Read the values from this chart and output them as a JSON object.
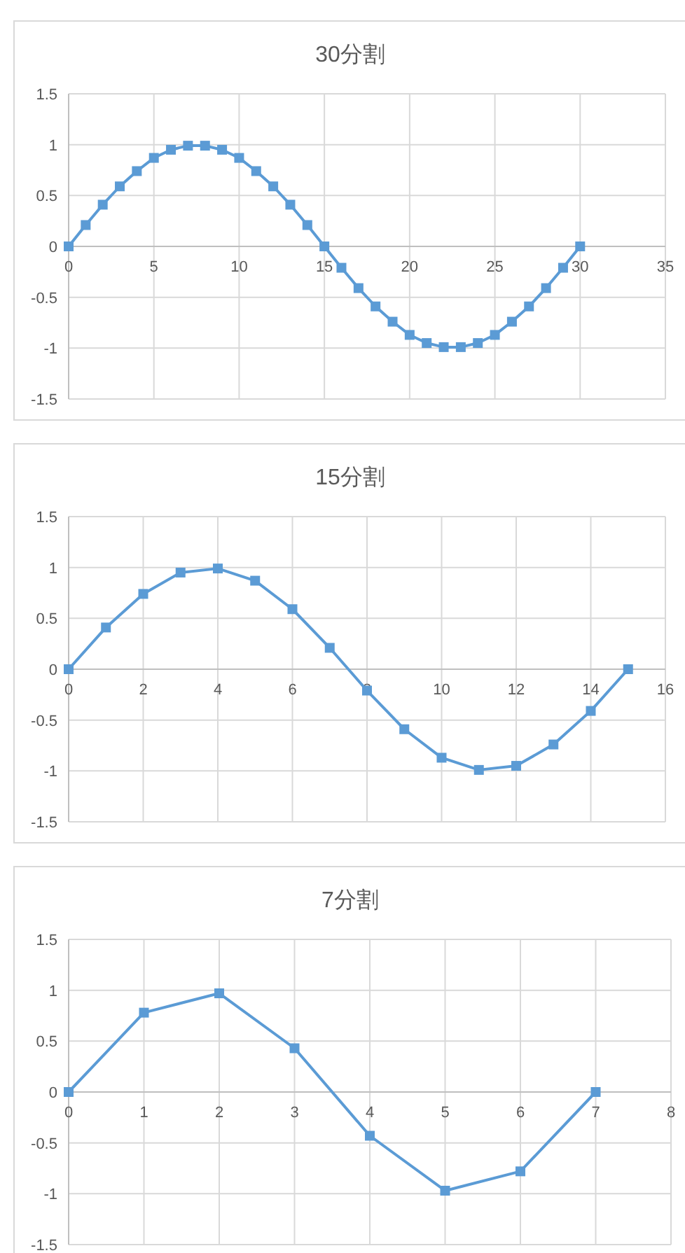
{
  "chart_data": [
    {
      "type": "line",
      "title": "30分割",
      "color": "#5b9bd5",
      "marker": "square",
      "line_style": "solid",
      "grid": true,
      "x": [
        0,
        1,
        2,
        3,
        4,
        5,
        6,
        7,
        8,
        9,
        10,
        11,
        12,
        13,
        14,
        15,
        16,
        17,
        18,
        19,
        20,
        21,
        22,
        23,
        24,
        25,
        26,
        27,
        28,
        29,
        30
      ],
      "values": [
        0,
        0.21,
        0.41,
        0.59,
        0.74,
        0.87,
        0.95,
        0.99,
        0.99,
        0.95,
        0.87,
        0.74,
        0.59,
        0.41,
        0.21,
        0,
        -0.21,
        -0.41,
        -0.59,
        -0.74,
        -0.87,
        -0.95,
        -0.99,
        -0.99,
        -0.95,
        -0.87,
        -0.74,
        -0.59,
        -0.41,
        -0.21,
        0
      ],
      "xlim": [
        0,
        35
      ],
      "ylim": [
        -1.5,
        1.5
      ],
      "xticks": [
        0,
        5,
        10,
        15,
        20,
        25,
        30,
        35
      ],
      "yticks": [
        -1.5,
        -1,
        -0.5,
        0,
        0.5,
        1,
        1.5
      ]
    },
    {
      "type": "line",
      "title": "15分割",
      "color": "#5b9bd5",
      "marker": "square",
      "line_style": "solid",
      "grid": true,
      "x": [
        0,
        1,
        2,
        3,
        4,
        5,
        6,
        7,
        8,
        9,
        10,
        11,
        12,
        13,
        14,
        15
      ],
      "values": [
        0,
        0.41,
        0.74,
        0.95,
        0.99,
        0.87,
        0.59,
        0.21,
        -0.21,
        -0.59,
        -0.87,
        -0.99,
        -0.95,
        -0.74,
        -0.41,
        0
      ],
      "xlim": [
        0,
        16
      ],
      "ylim": [
        -1.5,
        1.5
      ],
      "xticks": [
        0,
        2,
        4,
        6,
        8,
        10,
        12,
        14,
        16
      ],
      "yticks": [
        -1.5,
        -1,
        -0.5,
        0,
        0.5,
        1,
        1.5
      ]
    },
    {
      "type": "line",
      "title": "7分割",
      "color": "#5b9bd5",
      "marker": "square",
      "line_style": "solid",
      "grid": true,
      "x": [
        0,
        1,
        2,
        3,
        4,
        5,
        6,
        7
      ],
      "values": [
        0,
        0.78,
        0.97,
        0.43,
        -0.43,
        -0.97,
        -0.78,
        0
      ],
      "xlim": [
        0,
        8
      ],
      "ylim": [
        -1.5,
        1.5
      ],
      "xticks": [
        0,
        1,
        2,
        3,
        4,
        5,
        6,
        7,
        8
      ],
      "yticks": [
        -1.5,
        -1,
        -0.5,
        0,
        0.5,
        1,
        1.5
      ]
    }
  ]
}
